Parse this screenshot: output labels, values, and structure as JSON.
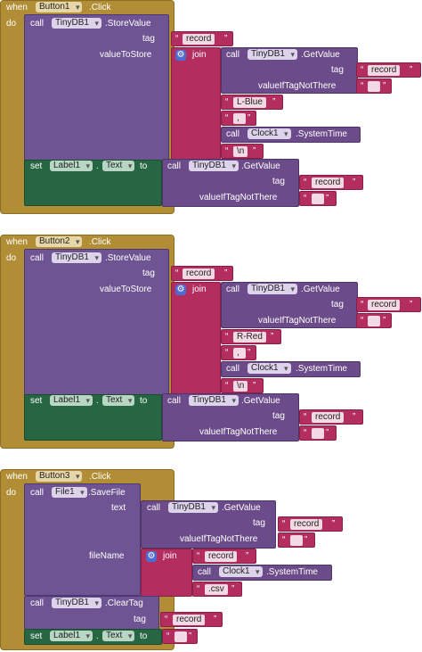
{
  "labels": {
    "when": "when",
    "do": "do",
    "call": "call",
    "set": "set",
    "to": "to",
    "join": "join",
    "tag": "tag",
    "valueToStore": "valueToStore",
    "valueIfTagNotThere": "valueIfTagNotThere",
    "text": "text",
    "fileName": "fileName",
    "click": ".Click",
    "storeValue": ".StoreValue",
    "getValue": ".GetValue",
    "systemTime": ".SystemTime",
    "saveFile": ".SaveFile",
    "clearTag": ".ClearTag",
    "dot": ".",
    "quoteOpen": "“",
    "quoteClose": "”"
  },
  "components": {
    "button1": "Button1",
    "button2": "Button2",
    "button3": "Button3",
    "tinydb": "TinyDB1",
    "clock": "Clock1",
    "file": "File1",
    "label": "Label1",
    "textProp": "Text"
  },
  "strings": {
    "record": "record",
    "empty": " ",
    "lblue": "L-Blue",
    "rred": "R-Red",
    "comma": ",",
    "newline": "\\n",
    "csv": ".csv"
  },
  "colors": {
    "event": "#b18e35",
    "procedure": "#6e5493",
    "text": "#b32d5e",
    "set": "#266643",
    "gear": "#4e6ccf"
  }
}
